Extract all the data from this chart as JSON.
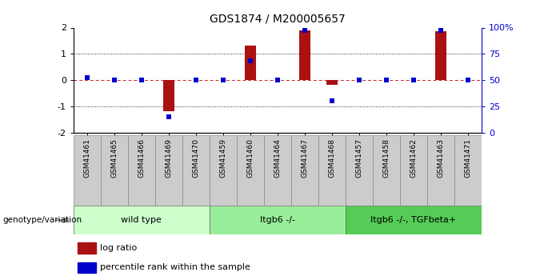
{
  "title": "GDS1874 / M200005657",
  "samples": [
    "GSM41461",
    "GSM41465",
    "GSM41466",
    "GSM41469",
    "GSM41470",
    "GSM41459",
    "GSM41460",
    "GSM41464",
    "GSM41467",
    "GSM41468",
    "GSM41457",
    "GSM41458",
    "GSM41462",
    "GSM41463",
    "GSM41471"
  ],
  "log_ratio": [
    0.0,
    0.0,
    0.0,
    -1.2,
    0.0,
    0.0,
    1.3,
    0.0,
    1.9,
    -0.18,
    0.0,
    0.0,
    0.0,
    1.85,
    0.0
  ],
  "percentile": [
    52,
    50,
    50,
    15,
    50,
    50,
    68,
    50,
    97,
    30,
    50,
    50,
    50,
    97,
    50
  ],
  "groups": [
    {
      "label": "wild type",
      "start": 0,
      "end": 5,
      "color": "#ccffcc"
    },
    {
      "label": "Itgb6 -/-",
      "start": 5,
      "end": 10,
      "color": "#99ee99"
    },
    {
      "label": "Itgb6 -/-, TGFbeta+",
      "start": 10,
      "end": 15,
      "color": "#55cc55"
    }
  ],
  "bar_color": "#aa1111",
  "dot_color": "#0000cc",
  "zero_line_color": "#cc2222",
  "grid_color": "#000000",
  "ylim": [
    -2,
    2
  ],
  "yticks_left": [
    -2,
    -1,
    0,
    1,
    2
  ],
  "yticks_right": [
    0,
    25,
    50,
    75,
    100
  ],
  "legend_log": "log ratio",
  "legend_pct": "percentile rank within the sample",
  "genotype_label": "genotype/variation",
  "bg_color": "#ffffff",
  "sample_box_color": "#cccccc",
  "bar_width": 0.4,
  "dot_size": 18
}
